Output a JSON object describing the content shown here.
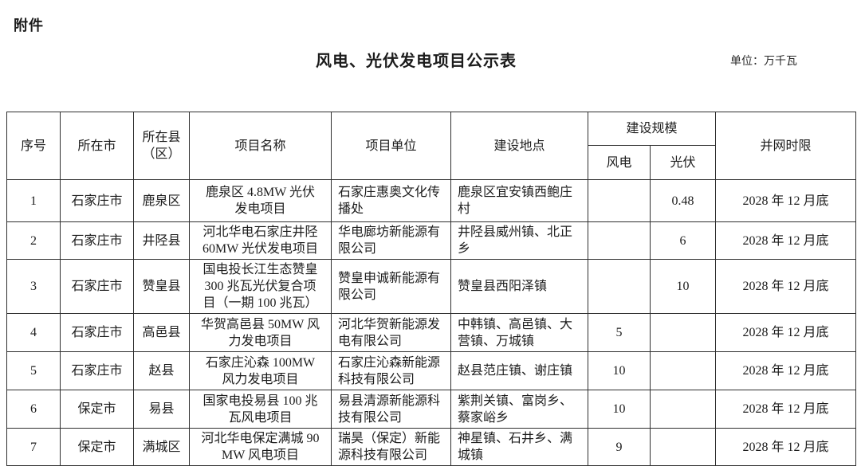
{
  "page": {
    "attachment_label": "附件",
    "title": "风电、光伏发电项目公示表",
    "unit_label": "单位：万千瓦"
  },
  "table": {
    "headers": {
      "index": "序号",
      "city": "所在市",
      "county": "所在县（区）",
      "project_name": "项目名称",
      "project_unit": "项目单位",
      "location": "建设地点",
      "scale_group": "建设规模",
      "wind": "风电",
      "solar": "光伏",
      "deadline": "并网时限"
    },
    "rows": [
      {
        "index": "1",
        "city": "石家庄市",
        "county": "鹿泉区",
        "project_name": "鹿泉区 4.8MW 光伏发电项目",
        "project_unit": "石家庄惠奥文化传播处",
        "location": "鹿泉区宜安镇西鲍庄村",
        "wind": "",
        "solar": "0.48",
        "deadline": "2028 年 12 月底"
      },
      {
        "index": "2",
        "city": "石家庄市",
        "county": "井陉县",
        "project_name": "河北华电石家庄井陉 60MW 光伏发电项目",
        "project_unit": "华电廊坊新能源有限公司",
        "location": "井陉县威州镇、北正乡",
        "wind": "",
        "solar": "6",
        "deadline": "2028 年 12 月底"
      },
      {
        "index": "3",
        "city": "石家庄市",
        "county": "赞皇县",
        "project_name": "国电投长江生态赞皇 300 兆瓦光伏复合项目（一期 100 兆瓦）",
        "project_unit": "赞皇申诚新能源有限公司",
        "location": "赞皇县西阳泽镇",
        "wind": "",
        "solar": "10",
        "deadline": "2028 年 12 月底"
      },
      {
        "index": "4",
        "city": "石家庄市",
        "county": "高邑县",
        "project_name": "华贺高邑县 50MW 风力发电项目",
        "project_unit": "河北华贺新能源发电有限公司",
        "location": "中韩镇、高邑镇、大营镇、万城镇",
        "wind": "5",
        "solar": "",
        "deadline": "2028 年 12 月底"
      },
      {
        "index": "5",
        "city": "石家庄市",
        "county": "赵县",
        "project_name": "石家庄沁森 100MW 风力发电项目",
        "project_unit": "石家庄沁森新能源科技有限公司",
        "location": "赵县范庄镇、谢庄镇",
        "wind": "10",
        "solar": "",
        "deadline": "2028 年 12 月底"
      },
      {
        "index": "6",
        "city": "保定市",
        "county": "易县",
        "project_name": "国家电投易县 100 兆瓦风电项目",
        "project_unit": "易县清源新能源科技有限公司",
        "location": "紫荆关镇、富岗乡、蔡家峪乡",
        "wind": "10",
        "solar": "",
        "deadline": "2028 年 12 月底"
      },
      {
        "index": "7",
        "city": "保定市",
        "county": "满城区",
        "project_name": "河北华电保定满城 90MW 风电项目",
        "project_unit": "瑞昊（保定）新能源科技有限公司",
        "location": "神星镇、石井乡、满城镇",
        "wind": "9",
        "solar": "",
        "deadline": "2028 年 12 月底"
      }
    ]
  },
  "colors": {
    "border": "#2f2f2f",
    "text": "#1c1c1c",
    "background": "#ffffff"
  }
}
